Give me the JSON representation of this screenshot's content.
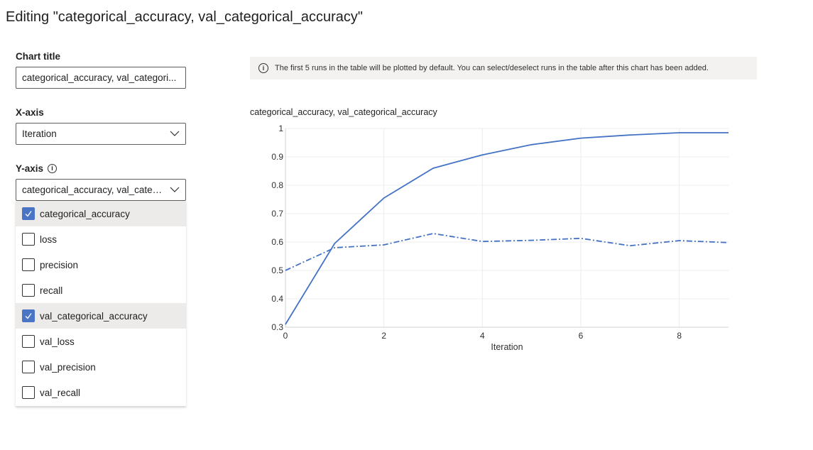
{
  "header": {
    "title": "Editing \"categorical_accuracy, val_categorical_accuracy\""
  },
  "form": {
    "chart_title_label": "Chart title",
    "chart_title_value": "categorical_accuracy, val_categori...",
    "xaxis_label": "X-axis",
    "xaxis_value": "Iteration",
    "yaxis_label": "Y-axis",
    "yaxis_info": "i",
    "yaxis_value": "categorical_accuracy, val_categ..."
  },
  "yaxis_options": [
    {
      "label": "categorical_accuracy",
      "checked": true
    },
    {
      "label": "loss",
      "checked": false
    },
    {
      "label": "precision",
      "checked": false
    },
    {
      "label": "recall",
      "checked": false
    },
    {
      "label": "val_categorical_accuracy",
      "checked": true
    },
    {
      "label": "val_loss",
      "checked": false
    },
    {
      "label": "val_precision",
      "checked": false
    },
    {
      "label": "val_recall",
      "checked": false
    }
  ],
  "banner": {
    "icon": "i",
    "text": "The first 5 runs in the table will be plotted by default. You can select/deselect runs in the table after this chart has been added."
  },
  "colors": {
    "accent": "#4a74c6",
    "series": "#4472c4"
  },
  "chart_data": {
    "type": "line",
    "title": "categorical_accuracy, val_categorical_accuracy",
    "xlabel": "Iteration",
    "ylabel": "",
    "x": [
      0,
      1,
      2,
      3,
      4,
      5,
      6,
      7,
      8,
      9
    ],
    "xlim": [
      0,
      9
    ],
    "ylim": [
      0.3,
      1
    ],
    "xticks": [
      "0",
      "2",
      "4",
      "6",
      "8"
    ],
    "yticks": [
      "0.3",
      "0.4",
      "0.5",
      "0.6",
      "0.7",
      "0.8",
      "0.9",
      "1"
    ],
    "grid": true,
    "series": [
      {
        "key": "categorical_accuracy",
        "style": "solid",
        "values": [
          0.31,
          0.595,
          0.755,
          0.86,
          0.907,
          0.943,
          0.966,
          0.977,
          0.985,
          0.985
        ]
      },
      {
        "key": "val_categorical_accuracy",
        "style": "dashdot",
        "values": [
          0.5,
          0.58,
          0.59,
          0.63,
          0.602,
          0.606,
          0.613,
          0.587,
          0.605,
          0.598
        ]
      }
    ]
  }
}
